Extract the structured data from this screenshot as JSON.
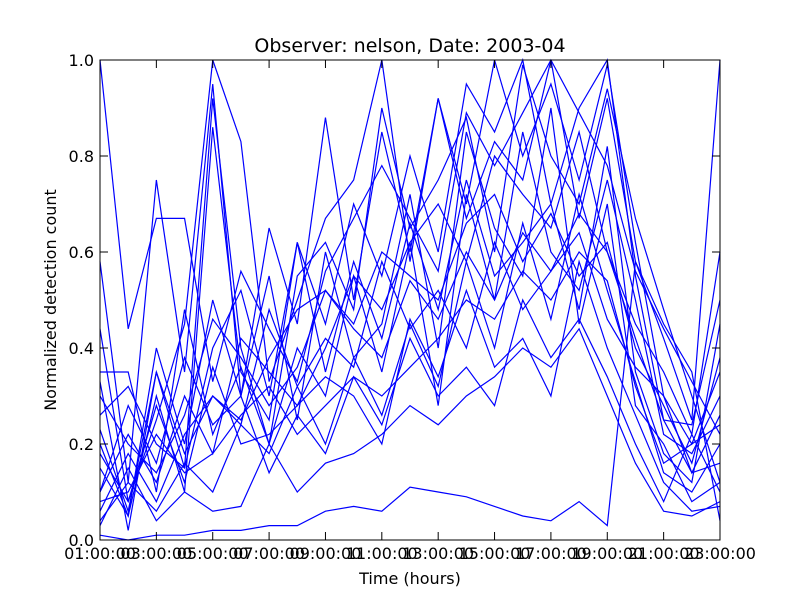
{
  "chart_data": {
    "type": "line",
    "title": "Observer: nelson, Date: 2003-04",
    "xlabel": "Time (hours)",
    "ylabel": "Normalized detection count",
    "xlim": [
      1,
      23
    ],
    "ylim": [
      0,
      1.0
    ],
    "grid": false,
    "legend": "none",
    "line_color": "#0000ff",
    "x_tick_values": [
      1,
      3,
      5,
      7,
      9,
      11,
      13,
      15,
      17,
      19,
      21,
      23
    ],
    "x_tick_labels": [
      "01:00:00",
      "03:00:00",
      "05:00:00",
      "07:00:00",
      "09:00:00",
      "11:00:00",
      "13:00:00",
      "15:00:00",
      "17:00:00",
      "19:00:00",
      "21:00:00",
      "23:00:00"
    ],
    "y_tick_values": [
      0,
      0.2,
      0.4,
      0.6,
      0.8,
      1.0
    ],
    "y_tick_labels": [
      "0.0",
      "0.2",
      "0.4",
      "0.6",
      "0.8",
      "1.0"
    ],
    "x": [
      1,
      2,
      3,
      4,
      5,
      6,
      7,
      8,
      9,
      10,
      11,
      12,
      13,
      14,
      15,
      16,
      17,
      18,
      19,
      20,
      21,
      22,
      23
    ],
    "series": [
      {
        "values": [
          0.01,
          0.0,
          0.01,
          0.01,
          0.02,
          0.02,
          0.03,
          0.03,
          0.06,
          0.07,
          0.06,
          0.11,
          0.1,
          0.09,
          0.07,
          0.05,
          0.04,
          0.08,
          0.03,
          0.58,
          0.45,
          0.35,
          0.04
        ]
      },
      {
        "values": [
          1.0,
          0.44,
          0.67,
          0.67,
          0.33,
          0.56,
          0.44,
          0.33,
          0.56,
          0.67,
          0.78,
          0.67,
          0.56,
          0.89,
          0.78,
          0.89,
          1.0,
          0.89,
          0.78,
          0.56,
          0.44,
          0.33,
          0.22
        ]
      },
      {
        "values": [
          0.58,
          0.12,
          0.75,
          0.35,
          0.95,
          0.3,
          0.65,
          0.45,
          0.88,
          0.5,
          0.85,
          0.6,
          0.92,
          0.7,
          1.0,
          0.8,
          0.95,
          0.75,
          0.99,
          0.62,
          0.3,
          0.2,
          0.35
        ]
      },
      {
        "values": [
          0.2,
          0.05,
          0.3,
          0.1,
          0.86,
          0.35,
          0.25,
          0.62,
          0.45,
          0.7,
          0.55,
          0.8,
          0.6,
          0.95,
          0.85,
          1.0,
          0.7,
          0.9,
          1.0,
          0.55,
          0.25,
          0.14,
          0.16
        ]
      },
      {
        "values": [
          0.33,
          0.02,
          0.35,
          0.15,
          0.92,
          0.4,
          0.2,
          0.55,
          0.62,
          0.48,
          0.9,
          0.65,
          0.75,
          0.88,
          0.6,
          0.99,
          0.8,
          0.7,
          0.94,
          0.67,
          0.48,
          0.3,
          0.12
        ]
      },
      {
        "values": [
          0.44,
          0.08,
          0.25,
          0.45,
          1.0,
          0.83,
          0.33,
          0.5,
          0.67,
          0.75,
          1.0,
          0.58,
          0.92,
          0.67,
          0.83,
          0.75,
          1.0,
          0.67,
          0.92,
          0.58,
          0.42,
          0.25,
          1.0
        ]
      },
      {
        "values": [
          0.1,
          0.22,
          0.12,
          0.3,
          0.18,
          0.42,
          0.35,
          0.28,
          0.4,
          0.55,
          0.48,
          0.62,
          0.7,
          0.58,
          0.8,
          0.72,
          0.65,
          0.85,
          0.6,
          0.45,
          0.35,
          0.22,
          0.6
        ]
      },
      {
        "values": [
          0.06,
          0.18,
          0.08,
          0.22,
          0.3,
          0.25,
          0.38,
          0.48,
          0.52,
          0.45,
          0.6,
          0.55,
          0.5,
          0.66,
          0.72,
          0.58,
          0.68,
          0.55,
          0.62,
          0.4,
          0.28,
          0.16,
          0.38
        ]
      },
      {
        "values": [
          0.26,
          0.32,
          0.2,
          0.15,
          0.4,
          0.52,
          0.3,
          0.62,
          0.35,
          0.58,
          0.42,
          0.66,
          0.48,
          0.75,
          0.55,
          0.62,
          0.7,
          0.48,
          0.82,
          0.35,
          0.18,
          0.12,
          0.45
        ]
      },
      {
        "values": [
          0.15,
          0.05,
          0.4,
          0.2,
          0.5,
          0.3,
          0.55,
          0.25,
          0.6,
          0.38,
          0.45,
          0.72,
          0.4,
          0.85,
          0.65,
          0.55,
          0.9,
          0.45,
          0.7,
          0.28,
          0.2,
          0.08,
          0.12
        ]
      },
      {
        "values": [
          0.35,
          0.35,
          0.1,
          0.48,
          0.22,
          0.36,
          0.2,
          0.4,
          0.3,
          0.55,
          0.35,
          0.62,
          0.28,
          0.72,
          0.5,
          0.85,
          0.6,
          0.52,
          0.75,
          0.5,
          0.22,
          0.18,
          0.3
        ]
      },
      {
        "values": [
          0.04,
          0.12,
          0.06,
          0.16,
          0.1,
          0.24,
          0.18,
          0.32,
          0.2,
          0.38,
          0.26,
          0.45,
          0.32,
          0.58,
          0.4,
          0.66,
          0.46,
          0.72,
          0.52,
          0.33,
          0.14,
          0.1,
          0.2
        ]
      },
      {
        "values": [
          0.18,
          0.08,
          0.28,
          0.12,
          0.36,
          0.2,
          0.22,
          0.28,
          0.34,
          0.3,
          0.2,
          0.46,
          0.34,
          0.52,
          0.36,
          0.42,
          0.3,
          0.58,
          0.4,
          0.26,
          0.12,
          0.06,
          0.07
        ]
      },
      {
        "values": [
          0.1,
          0.28,
          0.16,
          0.38,
          0.24,
          0.3,
          0.14,
          0.26,
          0.18,
          0.34,
          0.24,
          0.42,
          0.3,
          0.36,
          0.28,
          0.5,
          0.38,
          0.46,
          0.34,
          0.2,
          0.08,
          0.22,
          0.1
        ]
      },
      {
        "values": [
          0.03,
          0.15,
          0.04,
          0.1,
          0.06,
          0.07,
          0.2,
          0.1,
          0.16,
          0.18,
          0.22,
          0.28,
          0.24,
          0.3,
          0.34,
          0.4,
          0.36,
          0.44,
          0.3,
          0.16,
          0.06,
          0.05,
          0.08
        ]
      },
      {
        "values": [
          0.23,
          0.06,
          0.35,
          0.18,
          0.3,
          0.24,
          0.48,
          0.32,
          0.42,
          0.36,
          0.58,
          0.44,
          0.52,
          0.4,
          0.62,
          0.48,
          0.56,
          0.64,
          0.46,
          0.36,
          0.3,
          0.14,
          0.26
        ]
      },
      {
        "values": [
          0.3,
          0.2,
          0.14,
          0.26,
          0.46,
          0.38,
          0.28,
          0.36,
          0.52,
          0.44,
          0.38,
          0.54,
          0.46,
          0.6,
          0.5,
          0.64,
          0.56,
          0.68,
          0.6,
          0.42,
          0.25,
          0.24,
          0.5
        ]
      },
      {
        "values": [
          0.08,
          0.1,
          0.22,
          0.14,
          0.18,
          0.26,
          0.32,
          0.22,
          0.28,
          0.34,
          0.3,
          0.36,
          0.42,
          0.5,
          0.46,
          0.56,
          0.5,
          0.6,
          0.54,
          0.32,
          0.16,
          0.2,
          0.24
        ]
      }
    ]
  }
}
